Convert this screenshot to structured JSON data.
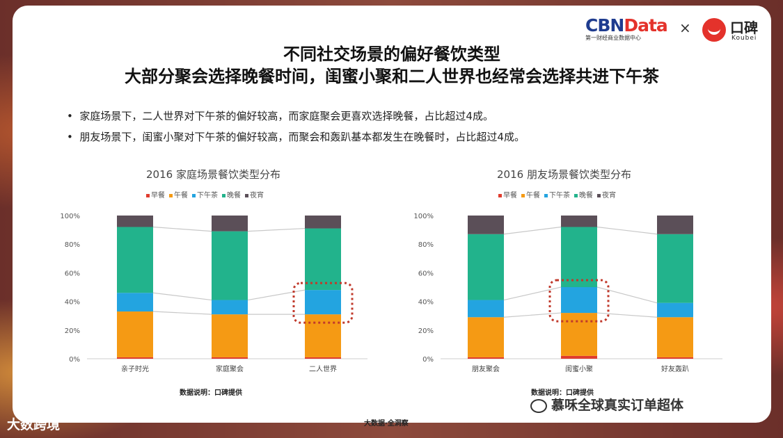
{
  "header": {
    "title1": "不同社交场景的偏好餐饮类型",
    "title2": "大部分聚会选择晚餐时间，闺蜜小聚和二人世界也经常会选择共进下午茶"
  },
  "bullets": [
    "家庭场景下，二人世界对下午茶的偏好较高，而家庭聚会更喜欢选择晚餐，占比超过4成。",
    "朋友场景下，闺蜜小聚对下午茶的偏好较高，而聚会和轰趴基本都发生在晚餐时，占比超过4成。"
  ],
  "brand": {
    "cbn_main": "CBN",
    "cbn_data": "Data",
    "cbn_sub": "第一财经商业数据中心",
    "cross": "×",
    "koubei_cn": "口碑",
    "koubei_en": "Koubei"
  },
  "colors": {
    "breakfast": "#e03c2e",
    "lunch": "#f59a14",
    "tea": "#23a4e0",
    "dinner": "#22b38c",
    "night": "#5b4f58",
    "highlight": "#c0392b"
  },
  "chart_data": [
    {
      "type": "bar",
      "stacked": true,
      "title": "2016 家庭场景餐饮类型分布",
      "categories": [
        "亲子时光",
        "家庭聚会",
        "二人世界"
      ],
      "yticks": [
        "0%",
        "20%",
        "40%",
        "60%",
        "80%",
        "100%"
      ],
      "ylim": [
        0,
        100
      ],
      "series": [
        {
          "name": "早餐",
          "values": [
            1,
            1,
            1
          ]
        },
        {
          "name": "午餐",
          "values": [
            32,
            30,
            30
          ]
        },
        {
          "name": "下午茶",
          "values": [
            13,
            10,
            17
          ]
        },
        {
          "name": "晚餐",
          "values": [
            46,
            48,
            43
          ]
        },
        {
          "name": "夜宵",
          "values": [
            8,
            11,
            9
          ]
        }
      ],
      "highlight_category": "二人世界",
      "note": "数据说明：口碑提供"
    },
    {
      "type": "bar",
      "stacked": true,
      "title": "2016 朋友场景餐饮类型分布",
      "categories": [
        "朋友聚会",
        "闺蜜小聚",
        "好友轰趴"
      ],
      "yticks": [
        "0%",
        "20%",
        "40%",
        "60%",
        "80%",
        "100%"
      ],
      "ylim": [
        0,
        100
      ],
      "series": [
        {
          "name": "早餐",
          "values": [
            1,
            2,
            1
          ]
        },
        {
          "name": "午餐",
          "values": [
            28,
            30,
            28
          ]
        },
        {
          "name": "下午茶",
          "values": [
            12,
            18,
            10
          ]
        },
        {
          "name": "晚餐",
          "values": [
            46,
            42,
            48
          ]
        },
        {
          "name": "夜宵",
          "values": [
            13,
            8,
            13
          ]
        }
      ],
      "highlight_category": "闺蜜小聚",
      "note": "数据说明：口碑提供"
    }
  ],
  "footer": "大数据·全洞察",
  "watermarks": {
    "left": "大数跨境",
    "right": "慕咊全球真实订单超体"
  }
}
